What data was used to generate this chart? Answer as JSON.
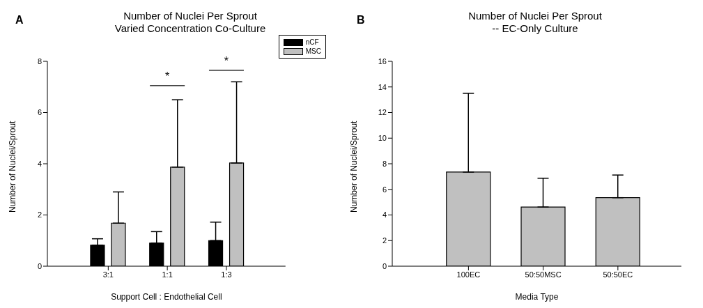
{
  "chart_data": [
    {
      "type": "bar",
      "title": "Number of Nuclei Per Sprout",
      "subtitle": "Varied Concentration Co-Culture",
      "xlabel": "Support Cell : Endothelial Cell",
      "ylabel": "Number of Nuclei/Sprout",
      "categories": [
        "3:1",
        "1:1",
        "1:3"
      ],
      "series": [
        {
          "name": "nCF",
          "color": "#000000",
          "values": [
            0.82,
            0.9,
            1.0
          ],
          "errors": [
            [
              0.82,
              1.07
            ],
            [
              0.9,
              1.35
            ],
            [
              1.0,
              1.72
            ]
          ]
        },
        {
          "name": "MSC",
          "color": "#c0c0c0",
          "values": [
            1.68,
            3.87,
            4.03
          ],
          "errors": [
            [
              1.68,
              2.9
            ],
            [
              3.87,
              6.5
            ],
            [
              4.03,
              7.2
            ]
          ]
        }
      ],
      "ylim": [
        0,
        8
      ],
      "yticks": [
        0,
        2,
        4,
        6,
        8
      ],
      "grid": false,
      "legend": "top right",
      "annotations": [
        "A",
        "*",
        "*"
      ]
    },
    {
      "type": "bar",
      "title": "Number of Nuclei Per Sprout",
      "subtitle": "-- EC-Only Culture",
      "xlabel": "Media Type",
      "ylabel": "Number of Nuclei/Sprout",
      "categories": [
        "100EC",
        "50:50MSC",
        "50:50EC"
      ],
      "series": [
        {
          "color": "#c0c0c0",
          "values": [
            7.35,
            4.62,
            5.35
          ],
          "errors": [
            [
              7.35,
              13.5
            ],
            [
              4.62,
              6.87
            ],
            [
              5.35,
              7.12
            ]
          ]
        }
      ],
      "ylim": [
        0,
        16
      ],
      "yticks": [
        0,
        2,
        4,
        6,
        8,
        10,
        12,
        14,
        16
      ],
      "grid": false,
      "legend": false,
      "annotations": [
        "B"
      ]
    }
  ]
}
